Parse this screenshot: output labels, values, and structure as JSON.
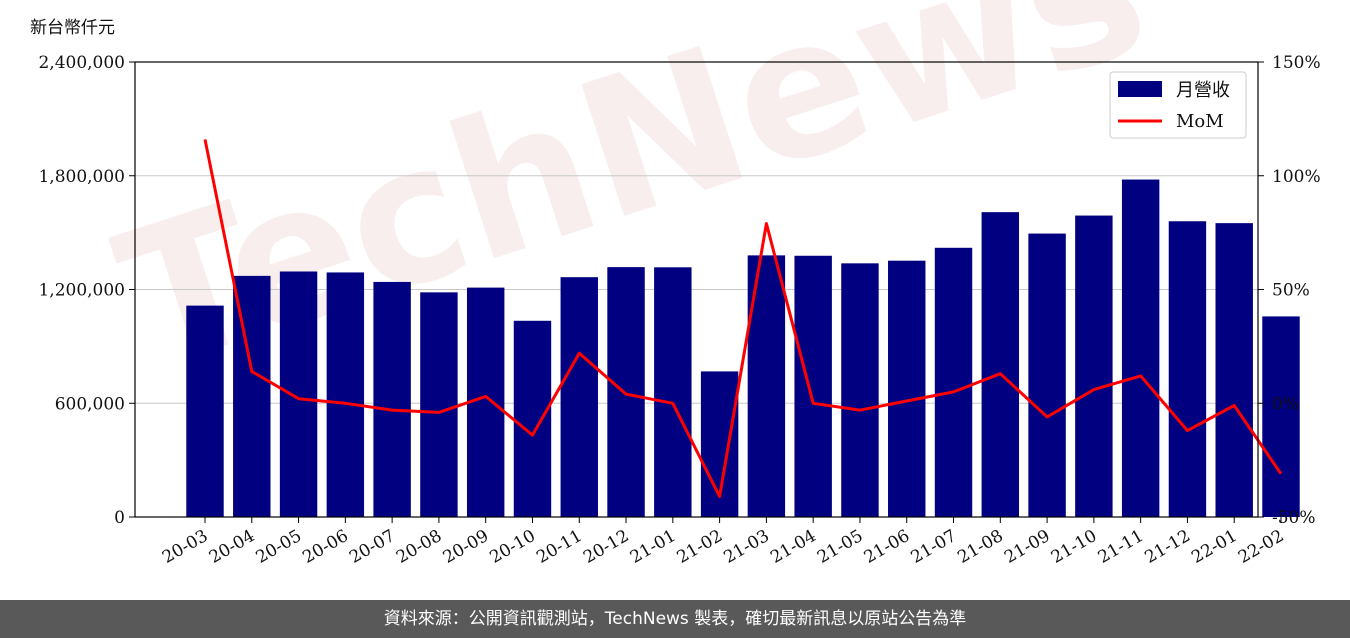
{
  "footer_text": "資料來源：公開資訊觀測站，TechNews 製表，確切最新訊息以原站公告為準",
  "watermark_text": "TechNews",
  "chart_data": {
    "type": "bar",
    "unit_label": "新台幣仟元",
    "categories": [
      "20-03",
      "20-04",
      "20-05",
      "20-06",
      "20-07",
      "20-08",
      "20-09",
      "20-10",
      "20-11",
      "20-12",
      "21-01",
      "21-02",
      "21-03",
      "21-04",
      "21-05",
      "21-06",
      "21-07",
      "21-08",
      "21-09",
      "21-10",
      "21-11",
      "21-12",
      "22-01",
      "22-02"
    ],
    "series": [
      {
        "name": "月營收",
        "type": "bar",
        "axis": "left",
        "color": "#000080",
        "values": [
          1115000,
          1272000,
          1295000,
          1290000,
          1240000,
          1185000,
          1210000,
          1035000,
          1265000,
          1318000,
          1317000,
          768000,
          1380000,
          1378000,
          1338000,
          1352000,
          1420000,
          1608000,
          1495000,
          1590000,
          1780000,
          1560000,
          1550000,
          1058000
        ]
      },
      {
        "name": "MoM",
        "type": "line",
        "axis": "right",
        "color": "#ff0000",
        "values": [
          116,
          14,
          2,
          0,
          -3,
          -4,
          3,
          -14,
          22,
          4,
          0,
          -41,
          79,
          0,
          -3,
          1,
          5,
          13,
          -6,
          6,
          12,
          -12,
          -1,
          -31
        ]
      }
    ],
    "y_left": {
      "ylim": [
        0,
        2400000
      ],
      "ticks": [
        "0",
        "600,000",
        "1,200,000",
        "1,800,000",
        "2,400,000"
      ],
      "tick_values": [
        0,
        600000,
        1200000,
        1800000,
        2400000
      ]
    },
    "y_right": {
      "ylim": [
        -50,
        150
      ],
      "ticks": [
        "-50%",
        "0%",
        "50%",
        "100%",
        "150%"
      ],
      "tick_values": [
        -50,
        0,
        50,
        100,
        150
      ]
    },
    "grid": true,
    "legend_position": "top-right"
  }
}
